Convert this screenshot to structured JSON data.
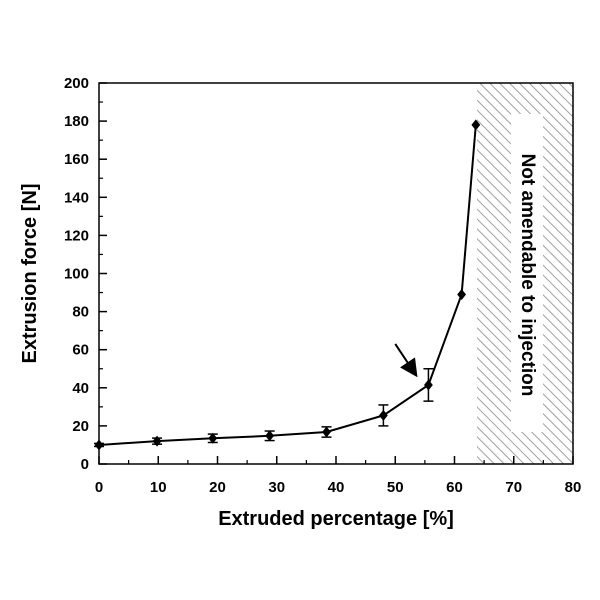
{
  "chart_data": {
    "type": "line",
    "xlabel": "Extruded percentage [%]",
    "ylabel": "Extrusion force [N]",
    "xlim": [
      0,
      80
    ],
    "ylim": [
      0,
      200
    ],
    "x_ticks": [
      0,
      10,
      20,
      30,
      40,
      50,
      60,
      70,
      80
    ],
    "y_ticks": [
      0,
      20,
      40,
      60,
      80,
      100,
      120,
      140,
      160,
      180,
      200
    ],
    "grid": false,
    "marker": "diamond",
    "series": [
      {
        "x": [
          0,
          9.8,
          19.2,
          28.8,
          38.4,
          48,
          55.6,
          61.2,
          63.6
        ],
        "y": [
          10,
          12,
          13.5,
          14.8,
          16.8,
          25.5,
          41.5,
          89,
          178
        ],
        "error": [
          0.8,
          1.6,
          2.2,
          2.5,
          2.7,
          5.5,
          8.5,
          0,
          0
        ]
      }
    ],
    "shaded_region": {
      "x_start": 63.8,
      "x_end": 80,
      "pattern": "diagonal hatch",
      "label": "Not amendable to injection"
    },
    "arrow_annotation": {
      "from": [
        50,
        63
      ],
      "to": [
        53,
        49
      ]
    }
  }
}
